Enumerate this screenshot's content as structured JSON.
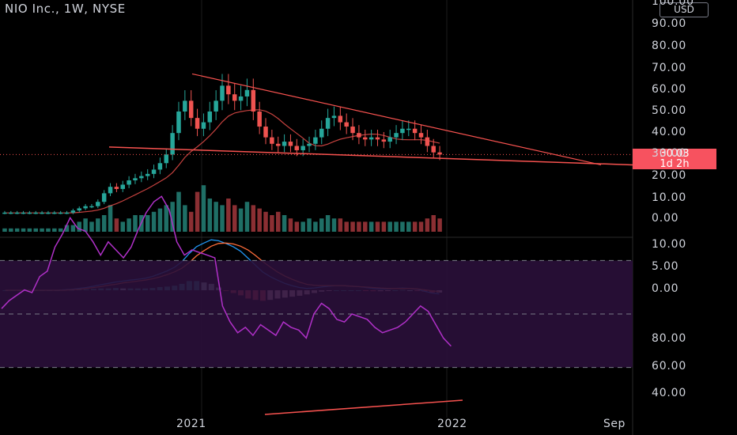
{
  "header": {
    "symbol_title": "NIO Inc., 1W, NYSE",
    "currency": "USD"
  },
  "price_marker": {
    "price": "30.03",
    "countdown": "1d 2h"
  },
  "colors": {
    "up": "#26a69a",
    "down": "#ef5350",
    "accent": "#f7525f",
    "ma_fast": "#f7524f",
    "macd": "#2196f3",
    "signal": "#ff6d3a",
    "rsi": "#9c27b0"
  },
  "axes": {
    "price_ticks": [
      "100.00",
      "90.00",
      "80.00",
      "70.00",
      "60.00",
      "50.00",
      "40.00",
      "30.00",
      "20.00",
      "10.00",
      "0.00"
    ],
    "macd_ticks": [
      "10.00",
      "5.00",
      "0.00"
    ],
    "rsi_ticks": [
      "80.00",
      "60.00",
      "40.00"
    ],
    "time_labels": [
      "2021",
      "2022",
      "Sep"
    ]
  },
  "chart_data": [
    {
      "type": "candlestick",
      "title": "NIO Inc., 1W, NYSE",
      "ylim": [
        0,
        100
      ],
      "levels": {
        "last_price": 30.03,
        "peak": 66.9,
        "support_line": [
          37.0,
          24.5
        ],
        "resistance_line": [
          68.0,
          24.5
        ]
      },
      "series": [
        {
          "name": "price",
          "values": [
            3,
            3,
            3,
            3,
            3,
            3,
            3,
            3,
            3,
            3,
            3,
            4,
            5,
            6,
            6,
            8,
            12,
            15,
            14,
            16,
            18,
            19,
            20,
            21,
            23,
            26,
            30,
            40,
            50,
            55,
            47,
            42,
            45,
            50,
            55,
            62,
            58,
            55,
            57,
            60,
            50,
            43,
            38,
            35,
            34,
            36,
            34,
            32,
            34,
            35,
            38,
            42,
            47,
            48,
            45,
            43,
            40,
            38,
            37,
            38,
            37,
            36,
            38,
            40,
            42,
            42,
            40,
            38,
            34,
            31,
            30
          ]
        }
      ]
    },
    {
      "type": "bar",
      "title": "Volume",
      "series": [
        {
          "name": "volume",
          "values": [
            1,
            1,
            1,
            1,
            1,
            1,
            1,
            1,
            1,
            1,
            2,
            2,
            3,
            4,
            3,
            4,
            5,
            8,
            4,
            3,
            4,
            5,
            5,
            5,
            6,
            7,
            8,
            9,
            12,
            8,
            6,
            12,
            14,
            10,
            9,
            8,
            10,
            8,
            7,
            9,
            8,
            7,
            6,
            5,
            6,
            5,
            4,
            3,
            3,
            4,
            3,
            4,
            5,
            4,
            4,
            3,
            3,
            3,
            3,
            3,
            3,
            3,
            3,
            3,
            3,
            3,
            3,
            3,
            4,
            5,
            4
          ]
        }
      ]
    },
    {
      "type": "line",
      "title": "MACD",
      "ylim": [
        -2,
        12
      ],
      "series": [
        {
          "name": "macd",
          "values": [
            0,
            0,
            0,
            0,
            0,
            0,
            0,
            0,
            0.1,
            0.2,
            0.4,
            0.6,
            0.9,
            1.2,
            1.5,
            1.8,
            2.0,
            2.2,
            2.4,
            2.6,
            3.0,
            3.6,
            4.2,
            5.0,
            6.2,
            8.0,
            9.5,
            10.3,
            11.0,
            10.8,
            10.2,
            9.5,
            8.5,
            7.0,
            5.5,
            4.0,
            3.0,
            2.2,
            1.5,
            1.0,
            0.6,
            0.4,
            0.5,
            0.7,
            0.9,
            1.0,
            1.0,
            0.9,
            0.8,
            0.6,
            0.4,
            0.3,
            0.3,
            0.4,
            0.5,
            0.4,
            0.2,
            -0.2,
            -0.6,
            -0.8
          ]
        },
        {
          "name": "signal",
          "values": [
            0,
            0,
            0,
            0,
            0,
            0,
            0,
            0,
            0,
            0.1,
            0.2,
            0.4,
            0.6,
            0.8,
            1.1,
            1.3,
            1.6,
            1.8,
            2.0,
            2.2,
            2.5,
            2.9,
            3.4,
            4.0,
            4.8,
            6.0,
            7.5,
            8.6,
            9.6,
            10.2,
            10.3,
            10.1,
            9.6,
            8.8,
            7.6,
            6.3,
            5.1,
            4.0,
            3.1,
            2.4,
            1.8,
            1.3,
            1.1,
            1.0,
            1.0,
            1.0,
            1.0,
            0.9,
            0.8,
            0.7,
            0.6,
            0.5,
            0.4,
            0.4,
            0.4,
            0.4,
            0.3,
            0.1,
            -0.1,
            -0.3
          ]
        },
        {
          "name": "histogram",
          "values": [
            0,
            0,
            0,
            0,
            0,
            0,
            0,
            0,
            0.1,
            0.1,
            0.2,
            0.2,
            0.3,
            0.4,
            0.4,
            0.5,
            0.4,
            0.4,
            0.4,
            0.4,
            0.5,
            0.7,
            0.8,
            1.0,
            1.4,
            2.0,
            2.0,
            1.7,
            1.4,
            0.6,
            -0.1,
            -0.6,
            -1.1,
            -1.8,
            -2.1,
            -2.3,
            -2.1,
            -1.8,
            -1.6,
            -1.4,
            -1.2,
            -0.9,
            -0.6,
            -0.3,
            -0.1,
            0,
            0,
            0,
            0,
            -0.1,
            -0.2,
            -0.2,
            -0.1,
            0,
            0.1,
            0,
            -0.1,
            -0.3,
            -0.5,
            -0.5
          ]
        }
      ]
    },
    {
      "type": "line",
      "title": "RSI",
      "ylim": [
        20,
        100
      ],
      "series": [
        {
          "name": "rsi",
          "values": [
            52,
            55,
            57,
            59,
            58,
            64,
            66,
            75,
            80,
            86,
            82,
            81,
            77,
            72,
            77,
            74,
            71,
            75,
            82,
            88,
            92,
            94,
            89,
            77,
            72,
            74,
            73,
            72,
            71,
            53,
            47,
            43,
            45,
            42,
            46,
            44,
            42,
            47,
            45,
            44,
            41,
            50,
            54,
            52,
            48,
            47,
            50,
            49,
            48,
            45,
            43,
            44,
            45,
            47,
            50,
            53,
            51,
            46,
            41,
            38
          ]
        }
      ]
    }
  ]
}
